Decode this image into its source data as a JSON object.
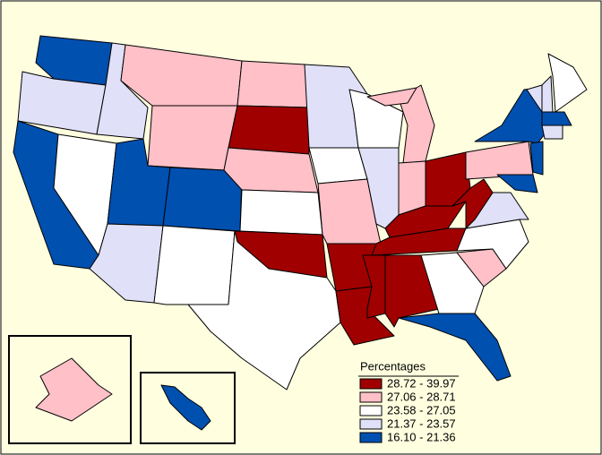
{
  "legend": {
    "title": "Percentages",
    "items": [
      {
        "label": "28.72 - 39.97",
        "color": "#a00000"
      },
      {
        "label": "27.06 - 28.71",
        "color": "#ffc0c8"
      },
      {
        "label": "23.58 - 27.05",
        "color": "#ffffff"
      },
      {
        "label": "21.37 - 23.57",
        "color": "#e0e0f8"
      },
      {
        "label": "16.10 - 21.36",
        "color": "#0050b0"
      }
    ]
  }
}
